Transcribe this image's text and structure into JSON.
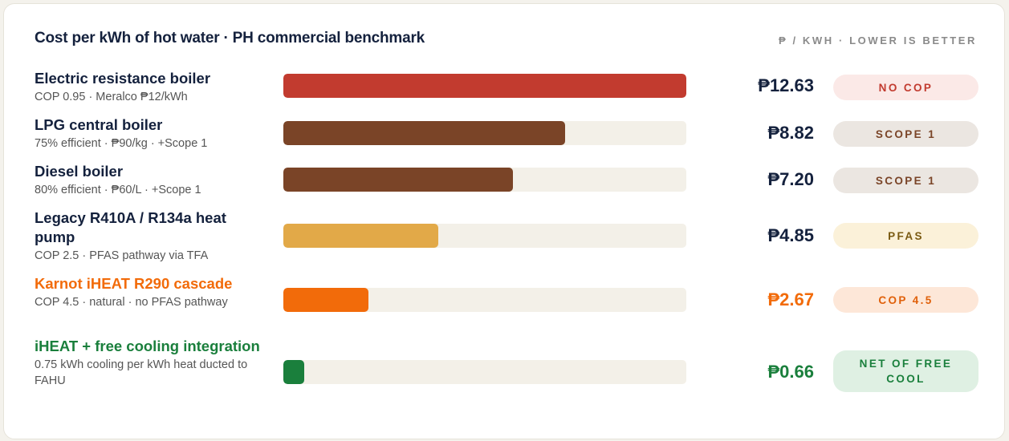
{
  "chart_data": {
    "type": "bar",
    "orientation": "horizontal",
    "title": "Cost per kWh of hot water · PH commercial benchmark",
    "unit_note": "₱ / KWH · LOWER IS BETTER",
    "xlim": [
      0,
      12.63
    ],
    "categories": [
      "Electric resistance boiler",
      "LPG central boiler",
      "Diesel boiler",
      "Legacy R410A / R134a heat pump",
      "Karnot iHEAT R290 cascade",
      "iHEAT + free cooling integration"
    ],
    "values": [
      12.63,
      8.82,
      7.2,
      4.85,
      2.67,
      0.66
    ],
    "rows": [
      {
        "name": "Electric resistance boiler",
        "sub": "COP 0.95 · Meralco ₱12/kWh",
        "value": 12.63,
        "value_text": "₱12.63",
        "tag": "NO COP",
        "bar_color": "#c23b2f",
        "name_color": "#14213d",
        "value_color": "#14213d",
        "tag_bg": "#fbe9e7",
        "tag_color": "#c23b2f"
      },
      {
        "name": "LPG central boiler",
        "sub": "75% efficient · ₱90/kg · +Scope 1",
        "value": 8.82,
        "value_text": "₱8.82",
        "tag": "SCOPE 1",
        "bar_color": "#7a4427",
        "name_color": "#14213d",
        "value_color": "#14213d",
        "tag_bg": "#ebe6e1",
        "tag_color": "#7a4427"
      },
      {
        "name": "Diesel boiler",
        "sub": "80% efficient · ₱60/L · +Scope 1",
        "value": 7.2,
        "value_text": "₱7.20",
        "tag": "SCOPE 1",
        "bar_color": "#7a4427",
        "name_color": "#14213d",
        "value_color": "#14213d",
        "tag_bg": "#ebe6e1",
        "tag_color": "#7a4427"
      },
      {
        "name": "Legacy R410A / R134a heat pump",
        "sub": "COP 2.5 · PFAS pathway via TFA",
        "value": 4.85,
        "value_text": "₱4.85",
        "tag": "PFAS",
        "bar_color": "#e2a948",
        "name_color": "#14213d",
        "value_color": "#14213d",
        "tag_bg": "#fbf1d9",
        "tag_color": "#7a5a12"
      },
      {
        "name": "Karnot iHEAT R290 cascade",
        "sub": "COP 4.5 · natural · no PFAS pathway",
        "value": 2.67,
        "value_text": "₱2.67",
        "tag": "COP 4.5",
        "bar_color": "#f26b0a",
        "name_color": "#f26b0a",
        "value_color": "#f26b0a",
        "tag_bg": "#fde7d8",
        "tag_color": "#e0600a"
      },
      {
        "name": "iHEAT + free cooling integration",
        "sub": "0.75 kWh cooling per kWh heat ducted to FAHU",
        "value": 0.66,
        "value_text": "₱0.66",
        "tag": "NET OF FREE COOL",
        "bar_color": "#1a7f3c",
        "name_color": "#1a7f3c",
        "value_color": "#1a7f3c",
        "tag_bg": "#dff0e3",
        "tag_color": "#1a7f3c"
      }
    ]
  }
}
